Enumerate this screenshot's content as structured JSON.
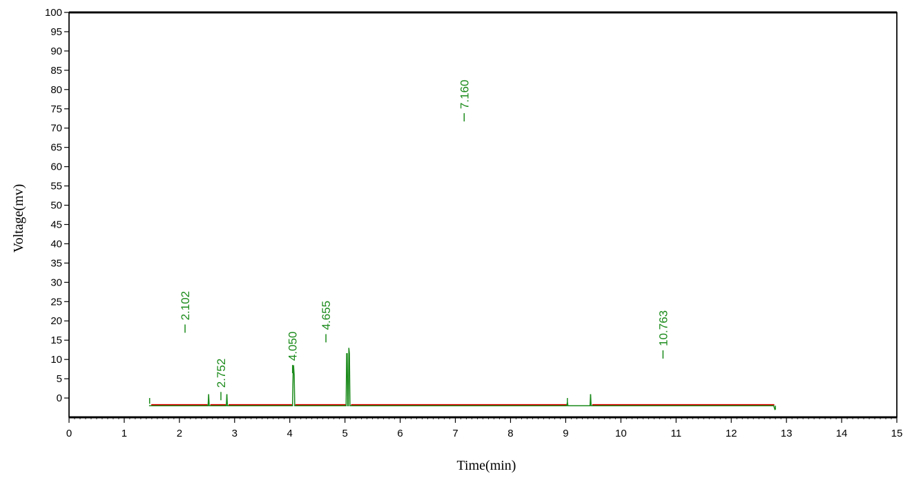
{
  "chart_data": {
    "type": "line",
    "title": "",
    "xlabel": "Time(min)",
    "ylabel": "Voltage(mv)",
    "xlim": [
      0,
      15
    ],
    "ylim": [
      -5,
      100
    ],
    "x_ticks": [
      0,
      1,
      2,
      3,
      4,
      5,
      6,
      7,
      8,
      9,
      10,
      11,
      12,
      13,
      14,
      15
    ],
    "y_ticks": [
      0,
      5,
      10,
      15,
      20,
      25,
      30,
      35,
      40,
      45,
      50,
      55,
      60,
      65,
      70,
      75,
      80,
      85,
      90,
      95,
      100
    ],
    "grid": false,
    "legend": "none",
    "colors": {
      "signal": "#1a8a1a",
      "baseline": "#dd0000",
      "labels": "#1a8a1a",
      "axes": "#000000"
    },
    "series": [
      {
        "x": [
          1.45,
          1.49,
          2.52,
          2.53,
          2.54,
          2.55,
          2.85,
          2.86,
          2.87,
          2.88,
          4.05,
          4.06,
          4.07,
          4.08,
          4.09,
          5.02,
          5.03,
          5.04,
          5.05,
          5.06,
          5.07,
          5.08,
          5.09,
          5.1,
          9.02,
          9.03,
          9.04,
          9.05,
          9.44,
          9.45,
          9.46,
          9.48,
          12.77,
          12.78,
          12.79,
          12.8
        ],
        "y": [
          -2.0,
          -2.0,
          -2.0,
          1.0,
          -2.0,
          -2.0,
          -2.0,
          1.0,
          -2.0,
          -2.0,
          -2.0,
          6.0,
          8.0,
          6.0,
          -2.0,
          -2.0,
          11.5,
          11.5,
          -2.0,
          -2.0,
          13.0,
          11.5,
          -2.0,
          -2.0,
          -2.0,
          -1.0,
          -2.0,
          -2.0,
          -2.0,
          1.0,
          -2.0,
          -2.0,
          -2.0,
          -2.5,
          -3.0,
          -3.0
        ]
      }
    ],
    "baseline_segments": [
      [
        1.49,
        2.51,
        -1.8
      ],
      [
        2.56,
        2.84,
        -1.8
      ],
      [
        2.89,
        4.04,
        -1.8
      ],
      [
        4.1,
        5.01,
        -1.8
      ],
      [
        5.11,
        9.02,
        -1.8
      ],
      [
        9.48,
        12.78,
        -1.8
      ]
    ],
    "peak_markers": [
      [
        1.46,
        -1.5,
        0.0
      ],
      [
        2.53,
        -1.0,
        1.0
      ],
      [
        2.86,
        -0.5,
        1.0
      ],
      [
        4.07,
        7.0,
        8.5
      ],
      [
        5.07,
        11.5,
        13.0
      ],
      [
        9.03,
        -1.0,
        0.0
      ],
      [
        9.45,
        -0.5,
        1.0
      ],
      [
        12.8,
        -3.0,
        -2.0
      ]
    ],
    "annotations": [
      {
        "label": "2.102",
        "x": 2.102,
        "y": 18.0
      },
      {
        "label": "2.752",
        "x": 2.752,
        "y": 0.5
      },
      {
        "label": "4.050",
        "x": 4.05,
        "y": 7.5
      },
      {
        "label": "4.655",
        "x": 4.655,
        "y": 15.5
      },
      {
        "label": "7.160",
        "x": 7.16,
        "y": 72.8
      },
      {
        "label": "10.763",
        "x": 10.763,
        "y": 11.3
      }
    ]
  }
}
